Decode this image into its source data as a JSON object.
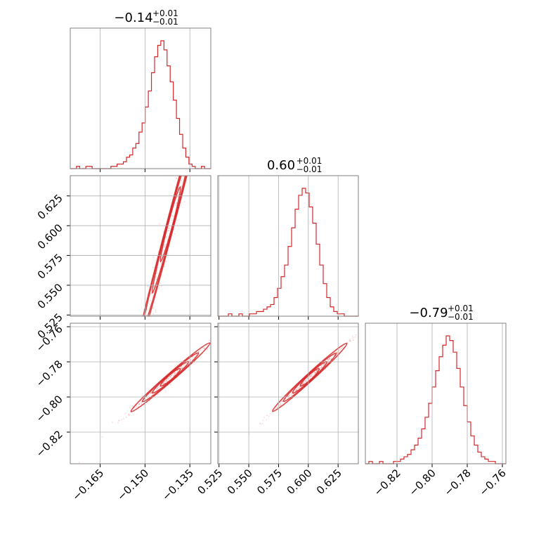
{
  "chart_data": {
    "type": "corner",
    "colors": {
      "line": "#d62728",
      "grid": "#b0b0b0",
      "frame": "#808080"
    },
    "params": [
      {
        "title": {
          "value": "−0.14",
          "sup": "+0.01",
          "sub": "−0.01"
        },
        "range": [
          -0.175,
          -0.128
        ],
        "ticks": [
          -0.165,
          -0.15,
          -0.135
        ],
        "tick_labels": [
          "−0.165",
          "−0.150",
          "−0.135"
        ]
      },
      {
        "title": {
          "value": "0.60",
          "sup": "+0.01",
          "sub": "−0.01"
        },
        "range": [
          0.524,
          0.642
        ],
        "ticks": [
          0.525,
          0.55,
          0.575,
          0.6,
          0.625
        ],
        "tick_labels": [
          "0.525",
          "0.550",
          "0.575",
          "0.600",
          "0.625"
        ]
      },
      {
        "title": {
          "value": "−0.79",
          "sup": "+0.01",
          "sub": "−0.01"
        },
        "range": [
          -0.838,
          -0.758
        ],
        "ticks": [
          -0.82,
          -0.8,
          -0.78,
          -0.76
        ],
        "tick_labels": [
          "−0.82",
          "−0.80",
          "−0.78",
          "−0.76"
        ]
      }
    ],
    "histograms": [
      {
        "param": 0,
        "counts": [
          0,
          0,
          1,
          0,
          0,
          1,
          1,
          0,
          0,
          0,
          0,
          0,
          0,
          1,
          1,
          2,
          2,
          3,
          5,
          6,
          9,
          11,
          16,
          20,
          27,
          34,
          42,
          49,
          54,
          56,
          52,
          45,
          38,
          30,
          22,
          15,
          9,
          5,
          2,
          1,
          0,
          0,
          1,
          0,
          0
        ]
      },
      {
        "param": 1,
        "counts": [
          0,
          0,
          0,
          1,
          0,
          0,
          1,
          0,
          0,
          1,
          1,
          2,
          2,
          3,
          4,
          5,
          8,
          12,
          17,
          22,
          30,
          38,
          46,
          52,
          55,
          53,
          47,
          40,
          31,
          22,
          14,
          8,
          4,
          2,
          1,
          1,
          0,
          0,
          0,
          0
        ]
      },
      {
        "param": 2,
        "counts": [
          0,
          1,
          0,
          0,
          1,
          0,
          0,
          0,
          1,
          1,
          2,
          3,
          4,
          6,
          8,
          11,
          15,
          20,
          26,
          33,
          40,
          46,
          51,
          55,
          53,
          48,
          41,
          33,
          25,
          18,
          12,
          8,
          5,
          3,
          2,
          1,
          1,
          0,
          0,
          0
        ]
      }
    ],
    "pairs": [
      {
        "x": 0,
        "y": 1,
        "slope": 9.53,
        "center": [
          -0.1415,
          0.6012
        ],
        "sd_x": 0.0055,
        "corr": 0.985
      },
      {
        "x": 0,
        "y": 2,
        "slope": 1.48,
        "center": [
          -0.1415,
          -0.7888
        ],
        "sd_x": 0.0055,
        "corr": 0.99
      },
      {
        "x": 1,
        "y": 2,
        "slope": 0.62,
        "center": [
          0.6012,
          -0.7888
        ],
        "sd_x": 0.013,
        "corr": 0.995
      }
    ],
    "grid": true
  }
}
